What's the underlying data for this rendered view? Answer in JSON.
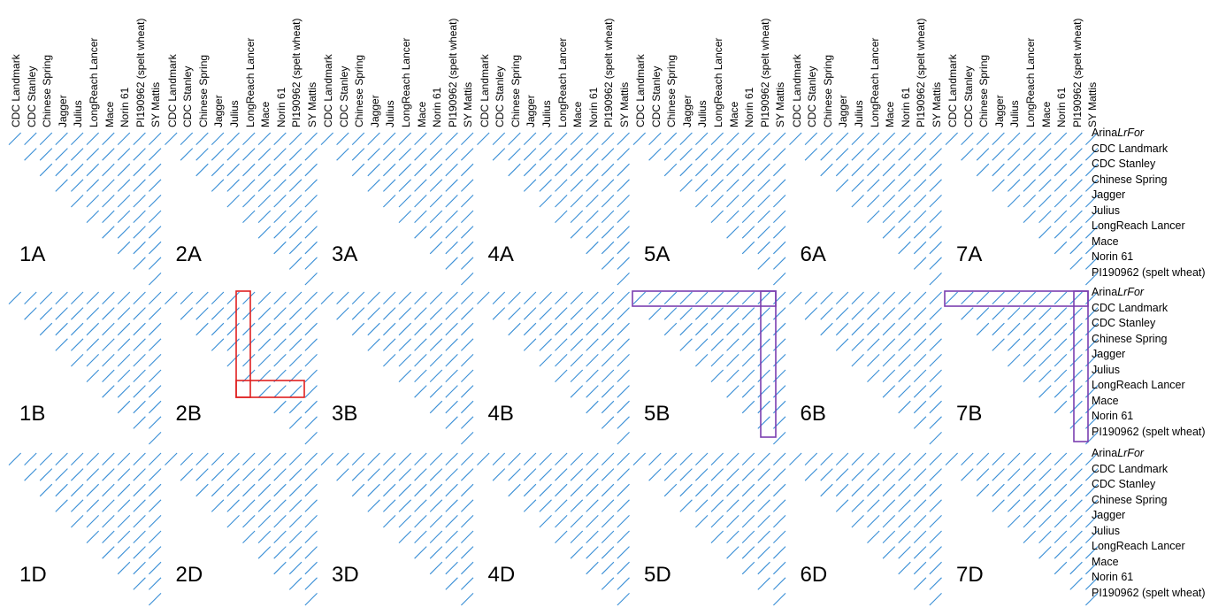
{
  "column_labels": [
    "CDC Landmark",
    "CDC Stanley",
    "Chinese Spring",
    "Jagger",
    "Julius",
    "LongReach Lancer",
    "Mace",
    "Norin 61",
    "PI190962 (spelt wheat)",
    "SY Mattis"
  ],
  "row_labels": [
    {
      "plain": "Arina",
      "italic": "LrFor"
    },
    {
      "plain": "CDC Landmark",
      "italic": ""
    },
    {
      "plain": "CDC Stanley",
      "italic": ""
    },
    {
      "plain": "Chinese Spring",
      "italic": ""
    },
    {
      "plain": "Jagger",
      "italic": ""
    },
    {
      "plain": "Julius",
      "italic": ""
    },
    {
      "plain": "LongReach Lancer",
      "italic": ""
    },
    {
      "plain": "Mace",
      "italic": ""
    },
    {
      "plain": "Norin 61",
      "italic": ""
    },
    {
      "plain": "PI190962 (spelt wheat)",
      "italic": ""
    }
  ],
  "panel_rows": [
    [
      "1A",
      "2A",
      "3A",
      "4A",
      "5A",
      "6A",
      "7A"
    ],
    [
      "1B",
      "2B",
      "3B",
      "4B",
      "5B",
      "6B",
      "7B"
    ],
    [
      "1D",
      "2D",
      "3D",
      "4D",
      "5D",
      "6D",
      "7D"
    ]
  ],
  "highlights": [
    {
      "panel": "2B",
      "color": "#e02020",
      "shape": "L",
      "column": "CDC Stanley... LongReach Lancer",
      "row": "Julius"
    },
    {
      "panel": "5B",
      "color": "#7b3fb0",
      "shape": "reverse-L",
      "row": "Arina LrFor",
      "column": "SY Mattis"
    },
    {
      "panel": "7B",
      "color": "#7b3fb0",
      "shape": "reverse-L",
      "row": "Arina LrFor",
      "column": "SY Mattis"
    }
  ],
  "colors": {
    "dotplot_line": "#3a8fd6",
    "highlight_red": "#e02020",
    "highlight_purple": "#7b3fb0"
  }
}
